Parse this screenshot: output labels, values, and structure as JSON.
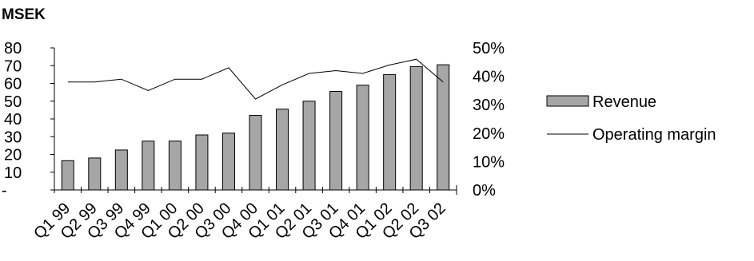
{
  "chart_data": {
    "type": "bar",
    "unit_label": "MSEK",
    "categories": [
      "Q1 99",
      "Q2 99",
      "Q3 99",
      "Q4 99",
      "Q1 00",
      "Q2 00",
      "Q3 00",
      "Q4 00",
      "Q1 01",
      "Q2 01",
      "Q3 01",
      "Q4 01",
      "Q1 02",
      "Q2 02",
      "Q3 02"
    ],
    "series": [
      {
        "name": "Revenue",
        "type": "bar",
        "axis": "left",
        "values": [
          16.5,
          18,
          22.5,
          27.5,
          27.5,
          31,
          32,
          42,
          45.5,
          50,
          55.5,
          59,
          65,
          69.5,
          70.5
        ]
      },
      {
        "name": "Operating margin",
        "type": "line",
        "axis": "right",
        "values": [
          38,
          38,
          39,
          35,
          39,
          39,
          43,
          32,
          37,
          41,
          42,
          41,
          44,
          46,
          38
        ]
      }
    ],
    "left_axis": {
      "ylim": [
        0,
        80
      ],
      "ticks": [
        "-",
        "10",
        "20",
        "30",
        "40",
        "50",
        "60",
        "70",
        "80"
      ]
    },
    "right_axis": {
      "ylim": [
        0,
        50
      ],
      "ticks": [
        "0%",
        "10%",
        "20%",
        "30%",
        "40%",
        "50%"
      ]
    },
    "legend_position": "right",
    "colors": {
      "bar_fill": "#a6a6a6",
      "bar_stroke": "#000000",
      "line": "#000000"
    }
  }
}
